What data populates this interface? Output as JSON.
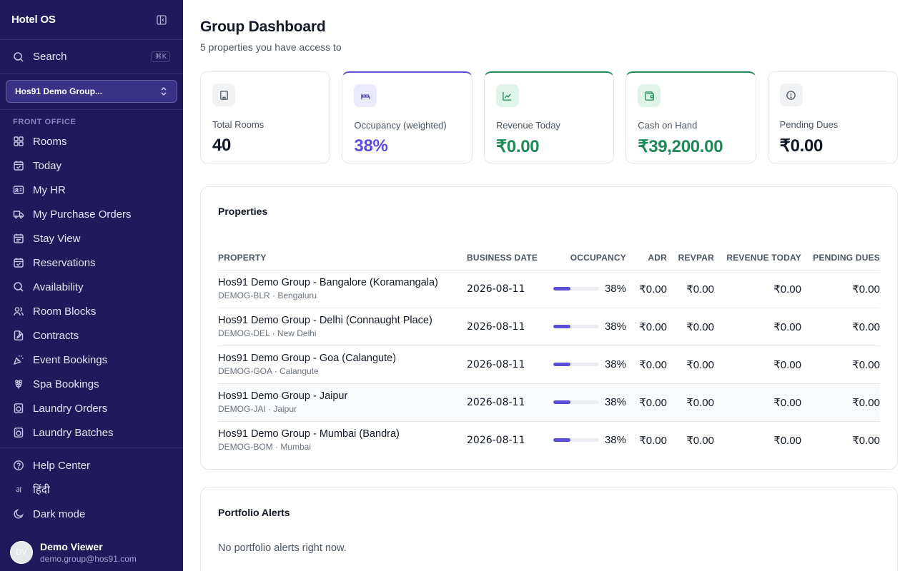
{
  "app": {
    "title": "Hotel OS"
  },
  "search": {
    "label": "Search",
    "shortcut": "⌘K"
  },
  "property_selector": {
    "value": "Hos91 Demo Group..."
  },
  "sidebar": {
    "section": "FRONT OFFICE",
    "items": [
      {
        "label": "Rooms",
        "icon": "grid-icon"
      },
      {
        "label": "Today",
        "icon": "calendar-check-icon"
      },
      {
        "label": "My HR",
        "icon": "id-card-icon"
      },
      {
        "label": "My Purchase Orders",
        "icon": "truck-icon"
      },
      {
        "label": "Stay View",
        "icon": "calendar-icon"
      },
      {
        "label": "Reservations",
        "icon": "calendar-check-icon"
      },
      {
        "label": "Availability",
        "icon": "search-icon"
      },
      {
        "label": "Room Blocks",
        "icon": "users-icon"
      },
      {
        "label": "Contracts",
        "icon": "file-edit-icon"
      },
      {
        "label": "Event Bookings",
        "icon": "party-icon"
      },
      {
        "label": "Spa Bookings",
        "icon": "flower-icon"
      },
      {
        "label": "Laundry Orders",
        "icon": "washing-machine-icon"
      },
      {
        "label": "Laundry Batches",
        "icon": "washing-machine-icon"
      }
    ],
    "footer": [
      {
        "label": "Help Center",
        "icon": "help-circle-icon"
      },
      {
        "label": "हिंदी",
        "glyph": "अ"
      },
      {
        "label": "Dark mode",
        "icon": "moon-icon"
      }
    ]
  },
  "user": {
    "initials": "DV",
    "name": "Demo Viewer",
    "email": "demo.group@hos91.com"
  },
  "page": {
    "title": "Group Dashboard",
    "subtitle": "5 properties you have access to"
  },
  "kpis": [
    {
      "label": "Total Rooms",
      "value": "40",
      "icon": "building-icon",
      "color": "#111827"
    },
    {
      "label": "Occupancy (weighted)",
      "value": "38%",
      "icon": "bed-icon",
      "color": "#5b4fd8"
    },
    {
      "label": "Revenue Today",
      "value": "₹0.00",
      "icon": "chart-line-icon",
      "color": "#1e8a55"
    },
    {
      "label": "Cash on Hand",
      "value": "₹39,200.00",
      "icon": "wallet-icon",
      "color": "#1e8a55"
    },
    {
      "label": "Pending Dues",
      "value": "₹0.00",
      "icon": "alert-circle-icon",
      "color": "#111827"
    }
  ],
  "properties": {
    "title": "Properties",
    "columns": [
      "PROPERTY",
      "BUSINESS DATE",
      "OCCUPANCY",
      "ADR",
      "REVPAR",
      "REVENUE TODAY",
      "PENDING DUES"
    ],
    "rows": [
      {
        "name": "Hos91 Demo Group - Bangalore (Koramangala)",
        "meta": "DEMOG-BLR · Bengaluru",
        "date": "2026-08-11",
        "occupancy": 38,
        "occupancy_label": "38%",
        "adr": "₹0.00",
        "revpar": "₹0.00",
        "revenue": "₹0.00",
        "dues": "₹0.00"
      },
      {
        "name": "Hos91 Demo Group - Delhi (Connaught Place)",
        "meta": "DEMOG-DEL · New Delhi",
        "date": "2026-08-11",
        "occupancy": 38,
        "occupancy_label": "38%",
        "adr": "₹0.00",
        "revpar": "₹0.00",
        "revenue": "₹0.00",
        "dues": "₹0.00"
      },
      {
        "name": "Hos91 Demo Group - Goa (Calangute)",
        "meta": "DEMOG-GOA · Calangute",
        "date": "2026-08-11",
        "occupancy": 38,
        "occupancy_label": "38%",
        "adr": "₹0.00",
        "revpar": "₹0.00",
        "revenue": "₹0.00",
        "dues": "₹0.00"
      },
      {
        "name": "Hos91 Demo Group - Jaipur",
        "meta": "DEMOG-JAI · Jaipur",
        "date": "2026-08-11",
        "occupancy": 38,
        "occupancy_label": "38%",
        "adr": "₹0.00",
        "revpar": "₹0.00",
        "revenue": "₹0.00",
        "dues": "₹0.00"
      },
      {
        "name": "Hos91 Demo Group - Mumbai (Bandra)",
        "meta": "DEMOG-BOM · Mumbai",
        "date": "2026-08-11",
        "occupancy": 38,
        "occupancy_label": "38%",
        "adr": "₹0.00",
        "revpar": "₹0.00",
        "revenue": "₹0.00",
        "dues": "₹0.00"
      }
    ]
  },
  "alerts": {
    "title": "Portfolio Alerts",
    "empty": "No portfolio alerts right now."
  },
  "colors": {
    "sidebar_bg": "#201a5c",
    "accent": "#5b4fd8",
    "positive": "#1e8a55"
  }
}
